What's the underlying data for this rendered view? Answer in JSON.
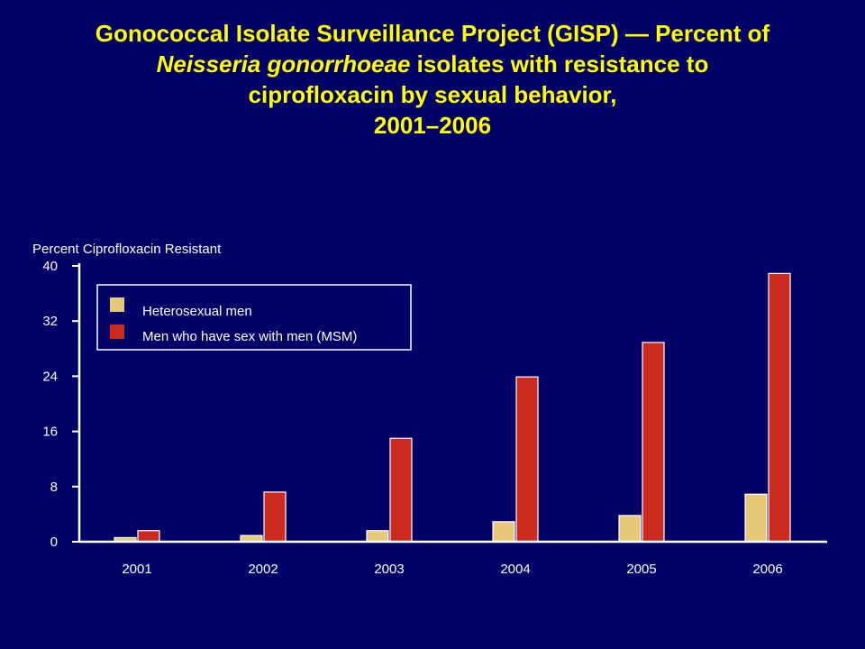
{
  "title": {
    "line1": "Gonococcal Isolate Surveillance Project (GISP) — Percent of",
    "line2_italic": "Neisseria gonorrhoeae",
    "line2_rest": " isolates with resistance to",
    "line3": "ciprofloxacin by sexual behavior,",
    "line4": "2001–2006"
  },
  "colors": {
    "background": "#000066",
    "title": "#ffff00",
    "axis": "#ffffff",
    "heterosexual": "#e6c878",
    "msm": "#cc2a1e"
  },
  "chart_data": {
    "type": "bar",
    "ylabel": "Percent Ciprofloxacin Resistant",
    "ylim": [
      0,
      40
    ],
    "yticks": [
      "0",
      "8",
      "16",
      "24",
      "32",
      "40"
    ],
    "categories": [
      "2001",
      "2002",
      "2003",
      "2004",
      "2005",
      "2006"
    ],
    "legend_position": "top-left",
    "series": [
      {
        "name": "Heterosexual men",
        "color": "#e6c878",
        "values": [
          0.6,
          0.9,
          1.6,
          2.9,
          3.8,
          6.9
        ]
      },
      {
        "name": "Men who have sex with men (MSM)",
        "color": "#cc2a1e",
        "values": [
          1.6,
          7.2,
          15.0,
          23.9,
          28.9,
          38.9
        ]
      }
    ]
  }
}
